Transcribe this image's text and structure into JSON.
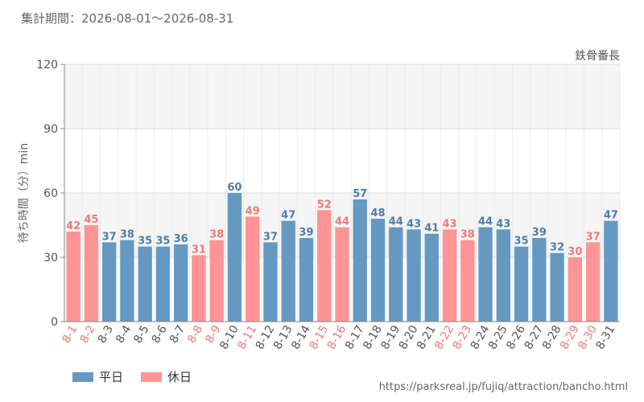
{
  "period_text": "集計期間：2026-08-01〜2026-08-31",
  "source_url": "https://parksreal.jp/fujiq/attraction/bancho.html",
  "chart_data": {
    "type": "bar",
    "title": "鉄骨番長",
    "ylabel": "待ち時間（分）min",
    "xlabel": "",
    "ylim": [
      0,
      120
    ],
    "yticks": [
      0,
      30,
      60,
      90,
      120
    ],
    "grid": true,
    "legend_placement": "bottom-left",
    "colors": {
      "weekday": "#6699c2",
      "holiday": "#ff9494",
      "weekday_label": "#4d7da8",
      "holiday_label": "#f07878"
    },
    "legend": [
      {
        "name": "平日",
        "kind": "weekday"
      },
      {
        "name": "休日",
        "kind": "holiday"
      }
    ],
    "categories": [
      "8-1",
      "8-2",
      "8-3",
      "8-4",
      "8-5",
      "8-6",
      "8-7",
      "8-8",
      "8-9",
      "8-10",
      "8-11",
      "8-12",
      "8-13",
      "8-14",
      "8-15",
      "8-16",
      "8-17",
      "8-18",
      "8-19",
      "8-20",
      "8-21",
      "8-22",
      "8-23",
      "8-24",
      "8-25",
      "8-26",
      "8-27",
      "8-28",
      "8-29",
      "8-30",
      "8-31"
    ],
    "values": [
      42,
      45,
      37,
      38,
      35,
      35,
      36,
      31,
      38,
      60,
      49,
      37,
      47,
      39,
      52,
      44,
      57,
      48,
      44,
      43,
      41,
      43,
      38,
      44,
      43,
      35,
      39,
      32,
      30,
      37,
      47
    ],
    "day_types": [
      "holiday",
      "holiday",
      "weekday",
      "weekday",
      "weekday",
      "weekday",
      "weekday",
      "holiday",
      "holiday",
      "weekday",
      "holiday",
      "weekday",
      "weekday",
      "weekday",
      "holiday",
      "holiday",
      "weekday",
      "weekday",
      "weekday",
      "weekday",
      "weekday",
      "holiday",
      "holiday",
      "weekday",
      "weekday",
      "weekday",
      "weekday",
      "weekday",
      "holiday",
      "holiday",
      "weekday"
    ]
  }
}
